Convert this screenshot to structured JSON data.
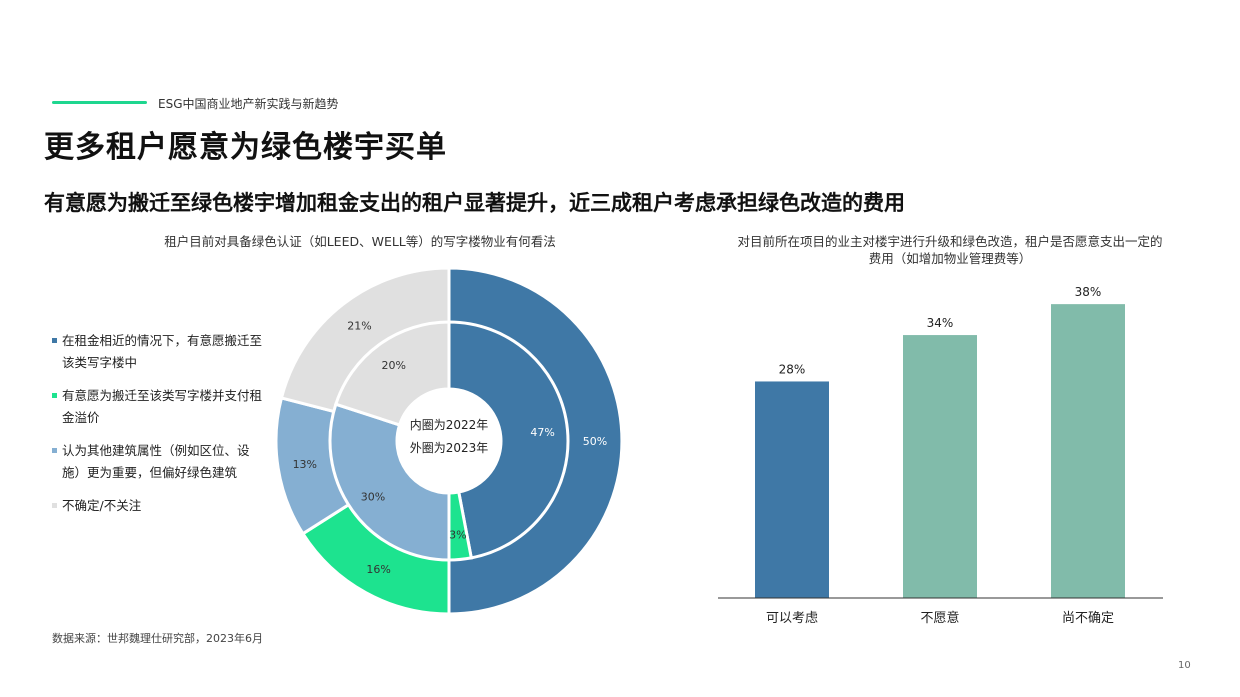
{
  "header": {
    "label": "ESG中国商业地产新实践与新趋势",
    "title": "更多租户愿意为绿色楼宇买单",
    "subtitle": "有意愿为搬迁至绿色楼宇增加租金支出的租户显著提升，近三成租户考虑承担绿色改造的费用",
    "accent_color": "#1ed68f"
  },
  "footer": {
    "source": "数据来源：世邦魏理仕研究部，2023年6月",
    "page_number": "10"
  },
  "chart_data": [
    {
      "type": "donut",
      "title": "租户目前对具备绿色认证（如LEED、WELL等）的写字楼物业有何看法",
      "center_labels": [
        "内圈为2022年",
        "外圈为2023年"
      ],
      "legend_position": "left",
      "categories": [
        "在租金相近的情况下，有意愿搬迁至该类写字楼中",
        "有意愿为搬迁至该类写字楼并支付租金溢价",
        "认为其他建筑属性（例如区位、设施）更为重要，但偏好绿色建筑",
        "不确定/不关注"
      ],
      "colors": [
        "#3f78a6",
        "#1de38f",
        "#85afd2",
        "#e0e0e0"
      ],
      "series": [
        {
          "name": "2022",
          "ring": "inner",
          "values": [
            47,
            3,
            30,
            20
          ],
          "labels": [
            "47%",
            "3%",
            "30%",
            "20%"
          ]
        },
        {
          "name": "2023",
          "ring": "outer",
          "values": [
            50,
            16,
            13,
            21
          ],
          "labels": [
            "50%",
            "16%",
            "13%",
            "21%"
          ]
        }
      ]
    },
    {
      "type": "bar",
      "title_lines": [
        "对目前所在项目的业主对楼宇进行升级和绿色改造，租户是否愿意支出一定的",
        "费用（如增加物业管理费等）"
      ],
      "categories": [
        "可以考虑",
        "不愿意",
        "尚不确定"
      ],
      "values": [
        28,
        34,
        38
      ],
      "labels": [
        "28%",
        "34%",
        "38%"
      ],
      "colors": [
        "#3f78a6",
        "#81bbaa",
        "#81bbaa"
      ],
      "ylim": [
        0,
        45
      ],
      "grid": false
    }
  ]
}
